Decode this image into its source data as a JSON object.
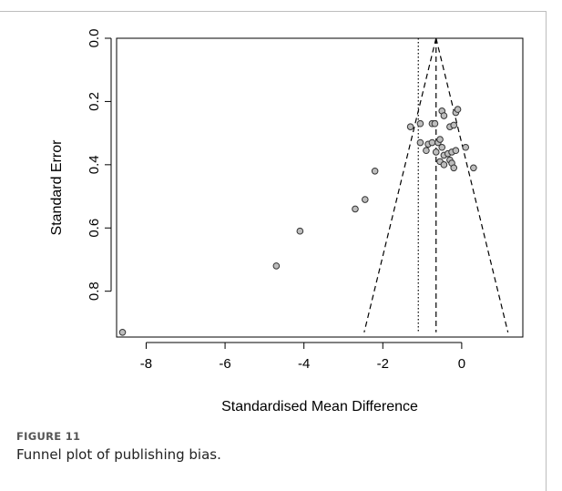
{
  "figure": {
    "label": "FIGURE 11",
    "caption": "Funnel plot of publishing bias."
  },
  "chart_data": {
    "type": "scatter",
    "title": "",
    "xlabel": "Standardised Mean Difference",
    "ylabel": "Standard Error",
    "xlim": [
      -8.75,
      1.55
    ],
    "ylim": [
      0.0,
      0.945
    ],
    "y_reversed": true,
    "x_ticks": [
      -8,
      -6,
      -4,
      -2,
      0
    ],
    "y_ticks": [
      0.0,
      0.2,
      0.4,
      0.6,
      0.8
    ],
    "x_tick_labels": [
      "-8",
      "-6",
      "-4",
      "-2",
      "0"
    ],
    "y_tick_labels": [
      "0.0",
      "0.2",
      "0.4",
      "0.6",
      "0.8"
    ],
    "grid": false,
    "legend": "none",
    "pooled_estimate": -0.65,
    "observed_mean_line": -1.1,
    "funnel_bottom_se": 0.93,
    "points": [
      {
        "x": -8.6,
        "y": 0.93
      },
      {
        "x": -4.7,
        "y": 0.72
      },
      {
        "x": -4.1,
        "y": 0.61
      },
      {
        "x": -2.7,
        "y": 0.54
      },
      {
        "x": -2.45,
        "y": 0.51
      },
      {
        "x": -2.2,
        "y": 0.42
      },
      {
        "x": -1.3,
        "y": 0.28
      },
      {
        "x": -1.05,
        "y": 0.27
      },
      {
        "x": -0.75,
        "y": 0.27
      },
      {
        "x": -0.68,
        "y": 0.27
      },
      {
        "x": -0.5,
        "y": 0.23
      },
      {
        "x": -0.45,
        "y": 0.245
      },
      {
        "x": -0.15,
        "y": 0.235
      },
      {
        "x": -0.1,
        "y": 0.225
      },
      {
        "x": -0.3,
        "y": 0.28
      },
      {
        "x": -0.2,
        "y": 0.275
      },
      {
        "x": -1.05,
        "y": 0.33
      },
      {
        "x": -0.85,
        "y": 0.335
      },
      {
        "x": -0.75,
        "y": 0.33
      },
      {
        "x": -0.6,
        "y": 0.33
      },
      {
        "x": -0.55,
        "y": 0.32
      },
      {
        "x": -0.5,
        "y": 0.345
      },
      {
        "x": -0.9,
        "y": 0.355
      },
      {
        "x": -0.65,
        "y": 0.36
      },
      {
        "x": -0.45,
        "y": 0.37
      },
      {
        "x": -0.35,
        "y": 0.365
      },
      {
        "x": -0.25,
        "y": 0.36
      },
      {
        "x": -0.15,
        "y": 0.355
      },
      {
        "x": 0.1,
        "y": 0.345
      },
      {
        "x": -0.55,
        "y": 0.39
      },
      {
        "x": -0.45,
        "y": 0.4
      },
      {
        "x": -0.3,
        "y": 0.385
      },
      {
        "x": -0.25,
        "y": 0.395
      },
      {
        "x": -0.2,
        "y": 0.41
      },
      {
        "x": 0.3,
        "y": 0.41
      }
    ],
    "colors": {
      "point_fill": "#bdbdbd",
      "point_stroke": "#333333",
      "line": "#000000"
    }
  }
}
